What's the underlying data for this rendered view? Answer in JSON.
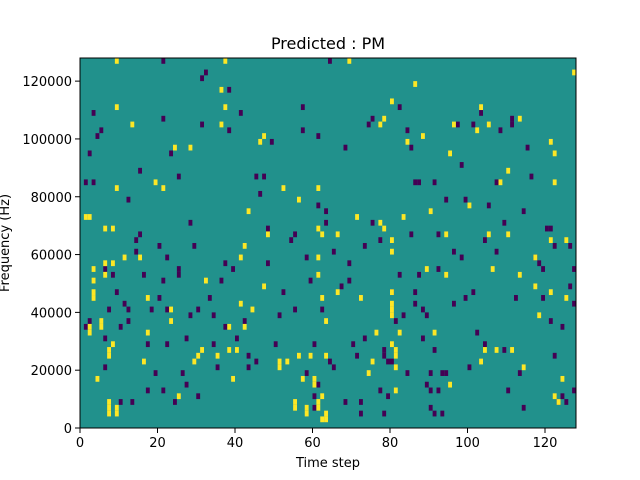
{
  "chart_data": {
    "type": "heatmap",
    "title": "Predicted : PM",
    "xlabel": "Time step",
    "ylabel": "Frequency (Hz)",
    "xlim": [
      0,
      128
    ],
    "ylim": [
      0,
      128000
    ],
    "xticks": [
      0,
      20,
      40,
      60,
      80,
      100,
      120
    ],
    "yticks": [
      0,
      20000,
      40000,
      60000,
      80000,
      100000,
      120000
    ],
    "xtick_labels": [
      "0",
      "20",
      "40",
      "60",
      "80",
      "100",
      "120"
    ],
    "ytick_labels": [
      "0",
      "20000",
      "40000",
      "60000",
      "80000",
      "100000",
      "120000"
    ],
    "freq_bin_hz": 2000,
    "colors": {
      "background": "#21918c",
      "high": "#fde725",
      "low": "#440154"
    },
    "cells_high": [
      [
        2,
        32000
      ],
      [
        2,
        34000
      ],
      [
        3,
        44000
      ],
      [
        3,
        46000
      ],
      [
        3,
        50000
      ],
      [
        3,
        54000
      ],
      [
        1,
        72000
      ],
      [
        2,
        72000
      ],
      [
        4,
        16000
      ],
      [
        5,
        34000
      ],
      [
        5,
        36000
      ],
      [
        6,
        52000
      ],
      [
        6,
        56000
      ],
      [
        6,
        68000
      ],
      [
        7,
        4000
      ],
      [
        7,
        6000
      ],
      [
        7,
        8000
      ],
      [
        7,
        24000
      ],
      [
        7,
        26000
      ],
      [
        8,
        56000
      ],
      [
        8,
        68000
      ],
      [
        8,
        28000
      ],
      [
        9,
        4000
      ],
      [
        9,
        6000
      ],
      [
        9,
        82000
      ],
      [
        9,
        110000
      ],
      [
        9,
        126000
      ],
      [
        11,
        58000
      ],
      [
        13,
        104000
      ],
      [
        15,
        58000
      ],
      [
        17,
        32000
      ],
      [
        16,
        22000
      ],
      [
        17,
        44000
      ],
      [
        19,
        84000
      ],
      [
        21,
        82000
      ],
      [
        23,
        36000
      ],
      [
        23,
        40000
      ],
      [
        24,
        96000
      ],
      [
        25,
        10000
      ],
      [
        28,
        96000
      ],
      [
        29,
        22000
      ],
      [
        30,
        24000
      ],
      [
        31,
        26000
      ],
      [
        32,
        50000
      ],
      [
        35,
        24000
      ],
      [
        36,
        104000
      ],
      [
        37,
        110000
      ],
      [
        37,
        126000
      ],
      [
        36,
        116000
      ],
      [
        38,
        26000
      ],
      [
        38,
        34000
      ],
      [
        39,
        16000
      ],
      [
        40,
        26000
      ],
      [
        41,
        42000
      ],
      [
        41,
        58000
      ],
      [
        42,
        34000
      ],
      [
        42,
        62000
      ],
      [
        43,
        74000
      ],
      [
        44,
        40000
      ],
      [
        46,
        98000
      ],
      [
        47,
        100000
      ],
      [
        47,
        48000
      ],
      [
        48,
        66000
      ],
      [
        51,
        20000
      ],
      [
        51,
        22000
      ],
      [
        52,
        82000
      ],
      [
        53,
        22000
      ],
      [
        56,
        78000
      ],
      [
        56,
        24000
      ],
      [
        55,
        6000
      ],
      [
        55,
        8000
      ],
      [
        57,
        16000
      ],
      [
        58,
        4000
      ],
      [
        58,
        6000
      ],
      [
        59,
        24000
      ],
      [
        60,
        14000
      ],
      [
        60,
        16000
      ],
      [
        61,
        6000
      ],
      [
        61,
        8000
      ],
      [
        62,
        10000
      ],
      [
        62,
        2000
      ],
      [
        63,
        4000
      ],
      [
        63,
        2000
      ],
      [
        61,
        52000
      ],
      [
        61,
        58000
      ],
      [
        61,
        68000
      ],
      [
        61,
        82000
      ],
      [
        62,
        66000
      ],
      [
        62,
        44000
      ],
      [
        63,
        24000
      ],
      [
        63,
        36000
      ],
      [
        66,
        46000
      ],
      [
        66,
        66000
      ],
      [
        71,
        72000
      ],
      [
        69,
        126000
      ],
      [
        72,
        44000
      ],
      [
        74,
        18000
      ],
      [
        75,
        22000
      ],
      [
        76,
        32000
      ],
      [
        77,
        70000
      ],
      [
        78,
        68000
      ],
      [
        77,
        104000
      ],
      [
        78,
        106000
      ],
      [
        80,
        28000
      ],
      [
        80,
        38000
      ],
      [
        80,
        40000
      ],
      [
        80,
        42000
      ],
      [
        80,
        46000
      ],
      [
        80,
        60000
      ],
      [
        80,
        64000
      ],
      [
        80,
        112000
      ],
      [
        81,
        12000
      ],
      [
        81,
        20000
      ],
      [
        81,
        24000
      ],
      [
        81,
        26000
      ],
      [
        82,
        32000
      ],
      [
        83,
        72000
      ],
      [
        84,
        98000
      ],
      [
        86,
        118000
      ],
      [
        88,
        100000
      ],
      [
        89,
        54000
      ],
      [
        91,
        32000
      ],
      [
        90,
        74000
      ],
      [
        94,
        52000
      ],
      [
        95,
        14000
      ],
      [
        94,
        66000
      ],
      [
        95,
        94000
      ],
      [
        96,
        104000
      ],
      [
        100,
        76000
      ],
      [
        102,
        102000
      ],
      [
        103,
        110000
      ],
      [
        103,
        22000
      ],
      [
        104,
        26000
      ],
      [
        105,
        104000
      ],
      [
        105,
        66000
      ],
      [
        106,
        54000
      ],
      [
        107,
        26000
      ],
      [
        108,
        84000
      ],
      [
        110,
        88000
      ],
      [
        110,
        66000
      ],
      [
        111,
        26000
      ],
      [
        113,
        52000
      ],
      [
        113,
        106000
      ],
      [
        114,
        20000
      ],
      [
        117,
        58000
      ],
      [
        118,
        38000
      ],
      [
        117,
        48000
      ],
      [
        121,
        64000
      ],
      [
        121,
        46000
      ],
      [
        121,
        98000
      ],
      [
        122,
        84000
      ],
      [
        122,
        94000
      ],
      [
        122,
        10000
      ],
      [
        123,
        8000
      ],
      [
        124,
        16000
      ],
      [
        125,
        64000
      ],
      [
        125,
        44000
      ],
      [
        127,
        122000
      ]
    ],
    "cells_low": [
      [
        1,
        34000
      ],
      [
        1,
        84000
      ],
      [
        2,
        36000
      ],
      [
        2,
        94000
      ],
      [
        3,
        84000
      ],
      [
        3,
        108000
      ],
      [
        4,
        100000
      ],
      [
        5,
        102000
      ],
      [
        6,
        20000
      ],
      [
        6,
        30000
      ],
      [
        6,
        54000
      ],
      [
        7,
        40000
      ],
      [
        8,
        52000
      ],
      [
        9,
        46000
      ],
      [
        10,
        8000
      ],
      [
        10,
        34000
      ],
      [
        11,
        42000
      ],
      [
        12,
        40000
      ],
      [
        12,
        78000
      ],
      [
        12,
        36000
      ],
      [
        13,
        8000
      ],
      [
        14,
        60000
      ],
      [
        14,
        64000
      ],
      [
        15,
        88000
      ],
      [
        15,
        66000
      ],
      [
        16,
        52000
      ],
      [
        17,
        12000
      ],
      [
        17,
        28000
      ],
      [
        18,
        40000
      ],
      [
        19,
        18000
      ],
      [
        20,
        44000
      ],
      [
        20,
        62000
      ],
      [
        21,
        12000
      ],
      [
        21,
        50000
      ],
      [
        21,
        106000
      ],
      [
        21,
        126000
      ],
      [
        22,
        28000
      ],
      [
        22,
        40000
      ],
      [
        23,
        94000
      ],
      [
        22,
        58000
      ],
      [
        24,
        8000
      ],
      [
        25,
        86000
      ],
      [
        25,
        54000
      ],
      [
        25,
        52000
      ],
      [
        26,
        18000
      ],
      [
        27,
        14000
      ],
      [
        27,
        30000
      ],
      [
        28,
        70000
      ],
      [
        28,
        38000
      ],
      [
        29,
        62000
      ],
      [
        30,
        40000
      ],
      [
        30,
        10000
      ],
      [
        31,
        104000
      ],
      [
        31,
        120000
      ],
      [
        32,
        122000
      ],
      [
        34,
        28000
      ],
      [
        33,
        44000
      ],
      [
        34,
        38000
      ],
      [
        35,
        20000
      ],
      [
        36,
        50000
      ],
      [
        37,
        34000
      ],
      [
        37,
        56000
      ],
      [
        38,
        102000
      ],
      [
        38,
        116000
      ],
      [
        39,
        54000
      ],
      [
        40,
        30000
      ],
      [
        41,
        108000
      ],
      [
        42,
        36000
      ],
      [
        43,
        20000
      ],
      [
        43,
        24000
      ],
      [
        45,
        22000
      ],
      [
        45,
        86000
      ],
      [
        46,
        80000
      ],
      [
        47,
        86000
      ],
      [
        48,
        68000
      ],
      [
        48,
        56000
      ],
      [
        49,
        98000
      ],
      [
        50,
        28000
      ],
      [
        51,
        38000
      ],
      [
        52,
        46000
      ],
      [
        54,
        64000
      ],
      [
        55,
        66000
      ],
      [
        55,
        40000
      ],
      [
        57,
        102000
      ],
      [
        57,
        110000
      ],
      [
        58,
        58000
      ],
      [
        59,
        50000
      ],
      [
        58,
        18000
      ],
      [
        60,
        6000
      ],
      [
        60,
        10000
      ],
      [
        60,
        28000
      ],
      [
        61,
        100000
      ],
      [
        61,
        14000
      ],
      [
        61,
        76000
      ],
      [
        62,
        40000
      ],
      [
        63,
        70000
      ],
      [
        63,
        74000
      ],
      [
        64,
        126000
      ],
      [
        64,
        22000
      ],
      [
        65,
        60000
      ],
      [
        65,
        20000
      ],
      [
        67,
        48000
      ],
      [
        68,
        8000
      ],
      [
        68,
        96000
      ],
      [
        69,
        56000
      ],
      [
        69,
        50000
      ],
      [
        70,
        28000
      ],
      [
        71,
        24000
      ],
      [
        72,
        8000
      ],
      [
        72,
        4000
      ],
      [
        73,
        30000
      ],
      [
        73,
        62000
      ],
      [
        74,
        104000
      ],
      [
        75,
        70000
      ],
      [
        75,
        106000
      ],
      [
        77,
        64000
      ],
      [
        77,
        12000
      ],
      [
        78,
        4000
      ],
      [
        78,
        24000
      ],
      [
        78,
        26000
      ],
      [
        79,
        22000
      ],
      [
        79,
        10000
      ],
      [
        80,
        22000
      ],
      [
        80,
        46000
      ],
      [
        81,
        36000
      ],
      [
        82,
        52000
      ],
      [
        82,
        110000
      ],
      [
        83,
        38000
      ],
      [
        84,
        18000
      ],
      [
        84,
        102000
      ],
      [
        85,
        66000
      ],
      [
        85,
        96000
      ],
      [
        86,
        84000
      ],
      [
        86,
        42000
      ],
      [
        86,
        46000
      ],
      [
        87,
        52000
      ],
      [
        87,
        84000
      ],
      [
        88,
        30000
      ],
      [
        88,
        40000
      ],
      [
        89,
        38000
      ],
      [
        89,
        14000
      ],
      [
        90,
        18000
      ],
      [
        90,
        6000
      ],
      [
        90,
        12000
      ],
      [
        91,
        4000
      ],
      [
        91,
        84000
      ],
      [
        91,
        26000
      ],
      [
        92,
        66000
      ],
      [
        92,
        54000
      ],
      [
        92,
        12000
      ],
      [
        93,
        4000
      ],
      [
        93,
        18000
      ],
      [
        94,
        18000
      ],
      [
        94,
        78000
      ],
      [
        96,
        60000
      ],
      [
        96,
        42000
      ],
      [
        97,
        104000
      ],
      [
        98,
        58000
      ],
      [
        98,
        90000
      ],
      [
        99,
        78000
      ],
      [
        99,
        44000
      ],
      [
        100,
        20000
      ],
      [
        101,
        104000
      ],
      [
        101,
        46000
      ],
      [
        102,
        32000
      ],
      [
        103,
        108000
      ],
      [
        104,
        28000
      ],
      [
        104,
        64000
      ],
      [
        105,
        76000
      ],
      [
        107,
        84000
      ],
      [
        107,
        60000
      ],
      [
        108,
        102000
      ],
      [
        109,
        70000
      ],
      [
        109,
        26000
      ],
      [
        110,
        12000
      ],
      [
        111,
        104000
      ],
      [
        111,
        106000
      ],
      [
        112,
        44000
      ],
      [
        113,
        18000
      ],
      [
        114,
        74000
      ],
      [
        114,
        6000
      ],
      [
        115,
        96000
      ],
      [
        116,
        86000
      ],
      [
        117,
        58000
      ],
      [
        118,
        56000
      ],
      [
        119,
        54000
      ],
      [
        119,
        44000
      ],
      [
        120,
        68000
      ],
      [
        121,
        68000
      ],
      [
        121,
        36000
      ],
      [
        122,
        62000
      ],
      [
        122,
        24000
      ],
      [
        123,
        8000
      ],
      [
        124,
        10000
      ],
      [
        124,
        34000
      ],
      [
        125,
        8000
      ],
      [
        126,
        48000
      ],
      [
        126,
        62000
      ],
      [
        127,
        42000
      ],
      [
        127,
        12000
      ],
      [
        127,
        54000
      ]
    ]
  }
}
